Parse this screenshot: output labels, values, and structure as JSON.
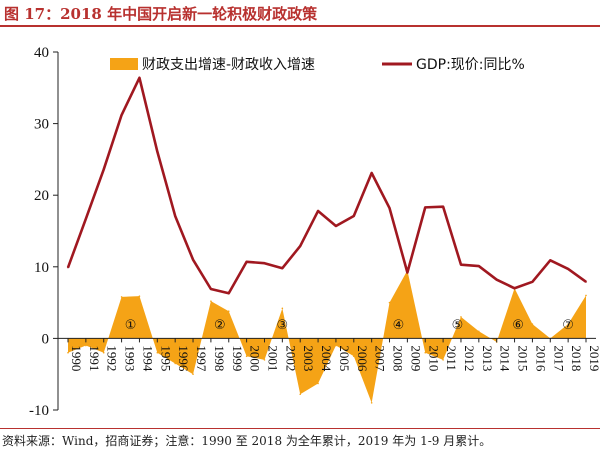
{
  "header": {
    "title": "图 17：2018 年中国开启新一轮积极财政政策"
  },
  "footer": {
    "source": "资料来源：Wind，招商证券；注意：1990 至 2018 为全年累计，2019 年为 1-9 月累计。"
  },
  "colors": {
    "area": "#f5a316",
    "line": "#a01820",
    "title": "#b8312f"
  },
  "chart_data": {
    "type": "line",
    "x": [
      "1990",
      "1991",
      "1992",
      "1993",
      "1994",
      "1995",
      "1996",
      "1997",
      "1998",
      "1999",
      "2000",
      "2001",
      "2002",
      "2003",
      "2004",
      "2005",
      "2006",
      "2007",
      "2008",
      "2009",
      "2010",
      "2011",
      "2012",
      "2013",
      "2014",
      "2015",
      "2016",
      "2017",
      "2018",
      "2019"
    ],
    "series": [
      {
        "name": "财政支出增速-财政收入增速",
        "kind": "area",
        "values": [
          -2,
          -1,
          -2,
          5.8,
          5.9,
          -2,
          -3.5,
          -5,
          5.2,
          3.8,
          -2.5,
          -3,
          4.2,
          -7.8,
          -6.3,
          -1,
          -2.5,
          -9,
          5,
          9.5,
          -2,
          -3,
          3,
          1,
          -0.5,
          7,
          2,
          0,
          2,
          6
        ]
      },
      {
        "name": "GDP:现价:同比%",
        "kind": "line",
        "values": [
          9.9,
          16.7,
          23.6,
          31.2,
          36.4,
          26.1,
          17.1,
          11.0,
          6.9,
          6.3,
          10.7,
          10.5,
          9.8,
          12.9,
          17.8,
          15.7,
          17.1,
          23.1,
          18.2,
          9.2,
          18.3,
          18.4,
          10.3,
          10.1,
          8.2,
          7.0,
          7.9,
          10.9,
          9.7,
          7.9
        ]
      }
    ],
    "ylim": [
      -10,
      40
    ],
    "yticks": [
      -10,
      0,
      10,
      20,
      30,
      40
    ],
    "legend_position": "top",
    "annotations": [
      {
        "label": "①",
        "x": "1993.5",
        "y": 2
      },
      {
        "label": "②",
        "x": "1998.5",
        "y": 2
      },
      {
        "label": "③",
        "x": "2002",
        "y": 2
      },
      {
        "label": "④",
        "x": "2008.5",
        "y": 2
      },
      {
        "label": "⑤",
        "x": "2011.8",
        "y": 2
      },
      {
        "label": "⑥",
        "x": "2015.2",
        "y": 2
      },
      {
        "label": "⑦",
        "x": "2018",
        "y": 2
      }
    ]
  }
}
